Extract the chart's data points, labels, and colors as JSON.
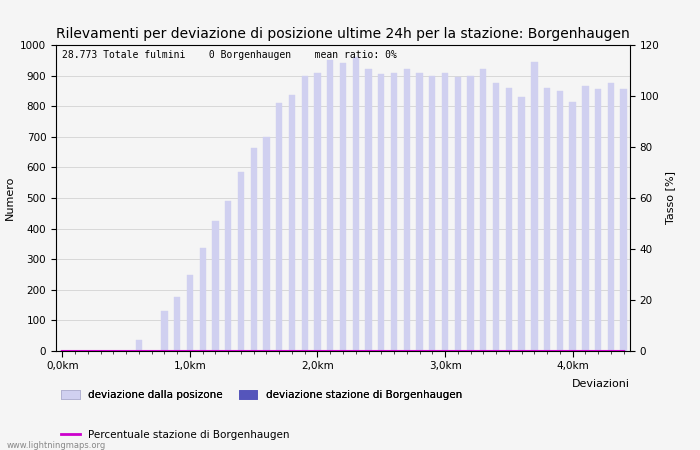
{
  "title": "Rilevamenti per deviazione di posizione ultime 24h per la stazione: Borgenhaugen",
  "subtitle": "28.773 Totale fulmini    0 Borgenhaugen    mean ratio: 0%",
  "ylabel_left": "Numero",
  "ylabel_right": "Tasso [%]",
  "xlabel": "Deviazioni",
  "ylim_left": [
    0,
    1000
  ],
  "ylim_right": [
    0,
    120
  ],
  "xtick_positions": [
    0,
    10,
    20,
    30,
    40
  ],
  "xtick_labels": [
    "0,0km",
    "1,0km",
    "2,0km",
    "3,0km",
    "4,0km"
  ],
  "ytick_left": [
    0,
    100,
    200,
    300,
    400,
    500,
    600,
    700,
    800,
    900,
    1000
  ],
  "ytick_right": [
    0,
    20,
    40,
    60,
    80,
    100,
    120
  ],
  "bar_heights": [
    0,
    0,
    0,
    0,
    0,
    0,
    35,
    0,
    130,
    175,
    250,
    335,
    425,
    490,
    585,
    665,
    700,
    810,
    835,
    900,
    910,
    950,
    940,
    960,
    920,
    905,
    910,
    920,
    910,
    900,
    910,
    895,
    900,
    920,
    875,
    860,
    830,
    945,
    860,
    850,
    815,
    865,
    855,
    875,
    855
  ],
  "station_bar_heights": [
    0,
    0,
    0,
    0,
    0,
    0,
    0,
    0,
    0,
    0,
    0,
    0,
    0,
    0,
    0,
    0,
    0,
    0,
    0,
    0,
    0,
    0,
    0,
    0,
    0,
    0,
    0,
    0,
    0,
    0,
    0,
    0,
    0,
    0,
    0,
    0,
    0,
    0,
    0,
    0,
    0,
    0,
    0,
    0,
    0
  ],
  "percentage_line": [
    0,
    0,
    0,
    0,
    0,
    0,
    0,
    0,
    0,
    0,
    0,
    0,
    0,
    0,
    0,
    0,
    0,
    0,
    0,
    0,
    0,
    0,
    0,
    0,
    0,
    0,
    0,
    0,
    0,
    0,
    0,
    0,
    0,
    0,
    0,
    0,
    0,
    0,
    0,
    0,
    0,
    0,
    0,
    0,
    0
  ],
  "bar_color_light": "#d0d0f0",
  "bar_color_dark": "#5555bb",
  "line_color": "#cc00cc",
  "background_color": "#f5f5f5",
  "grid_color": "#cccccc",
  "title_fontsize": 10,
  "axis_fontsize": 8,
  "tick_fontsize": 7.5,
  "watermark": "www.lightningmaps.org",
  "legend_item_light": "deviazione dalla posizone",
  "legend_item_dark": "deviazione stazione di Borgenhaugen",
  "legend_item_line": "Percentuale stazione di Borgenhaugen",
  "n_bars": 45
}
